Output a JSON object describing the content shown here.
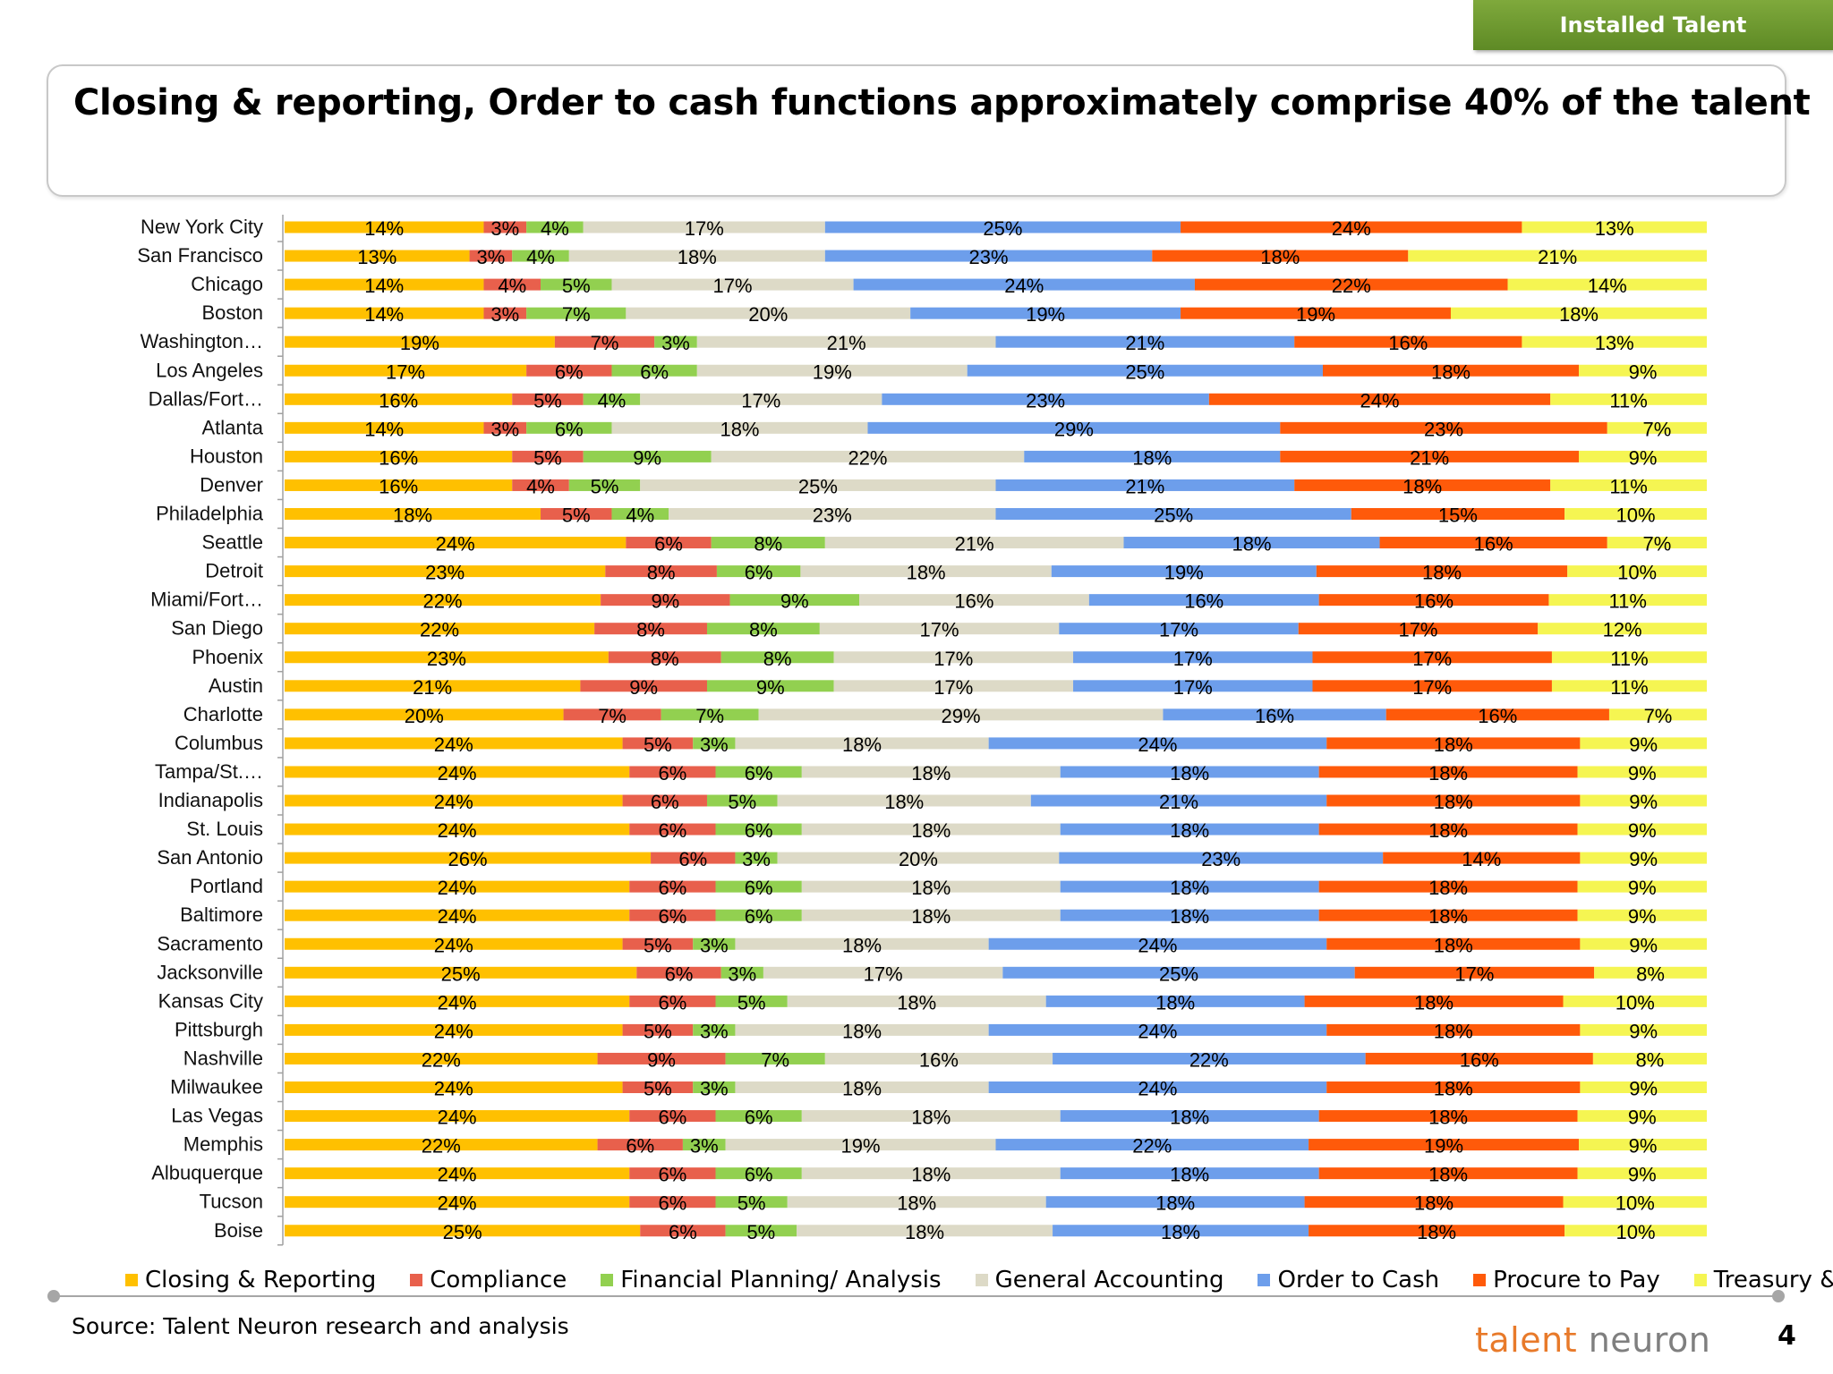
{
  "header": {
    "tag": "Installed Talent",
    "title": "Closing & reporting, Order to cash functions approximately comprise 40% of the talent"
  },
  "footer": {
    "source": "Source: Talent Neuron research and analysis",
    "logo_part1": "talent",
    "logo_part2": " neuron",
    "page_number": "4"
  },
  "chart_data": {
    "type": "bar",
    "orientation": "horizontal",
    "stacked": "100%",
    "categories": [
      "New York City",
      "San Francisco",
      "Chicago",
      "Boston",
      "Washington…",
      "Los Angeles",
      "Dallas/Fort…",
      "Atlanta",
      "Houston",
      "Denver",
      "Philadelphia",
      "Seattle",
      "Detroit",
      "Miami/Fort…",
      "San Diego",
      "Phoenix",
      "Austin",
      "Charlotte",
      "Columbus",
      "Tampa/St.…",
      "Indianapolis",
      "St. Louis",
      "San Antonio",
      "Portland",
      "Baltimore",
      "Sacramento",
      "Jacksonville",
      "Kansas City",
      "Pittsburgh",
      "Nashville",
      "Milwaukee",
      "Las Vegas",
      "Memphis",
      "Albuquerque",
      "Tucson",
      "Boise"
    ],
    "series": [
      {
        "name": "Closing & Reporting",
        "color": "#FFC000",
        "values": [
          14,
          13,
          14,
          14,
          19,
          17,
          16,
          14,
          16,
          16,
          18,
          24,
          23,
          22,
          22,
          23,
          21,
          20,
          24,
          24,
          24,
          24,
          26,
          24,
          24,
          24,
          25,
          24,
          24,
          22,
          24,
          24,
          22,
          24,
          24,
          25
        ]
      },
      {
        "name": "Compliance",
        "color": "#E8604C",
        "values": [
          3,
          3,
          4,
          3,
          7,
          6,
          5,
          3,
          5,
          4,
          5,
          6,
          8,
          9,
          8,
          8,
          9,
          7,
          5,
          6,
          6,
          6,
          6,
          6,
          6,
          5,
          6,
          6,
          5,
          9,
          5,
          6,
          6,
          6,
          6,
          6
        ]
      },
      {
        "name": "Financial Planning/ Analysis",
        "color": "#92D050",
        "values": [
          4,
          4,
          5,
          7,
          3,
          6,
          4,
          6,
          9,
          5,
          4,
          8,
          6,
          9,
          8,
          8,
          9,
          7,
          3,
          6,
          5,
          6,
          3,
          6,
          6,
          3,
          3,
          5,
          3,
          7,
          3,
          6,
          3,
          6,
          5,
          5
        ]
      },
      {
        "name": "General Accounting",
        "color": "#DDDAC7",
        "values": [
          17,
          18,
          17,
          20,
          21,
          19,
          17,
          18,
          22,
          25,
          23,
          21,
          18,
          16,
          17,
          17,
          17,
          29,
          18,
          18,
          18,
          18,
          20,
          18,
          18,
          18,
          17,
          18,
          18,
          16,
          18,
          18,
          19,
          18,
          18,
          18
        ]
      },
      {
        "name": "Order to Cash",
        "color": "#6D9EEB",
        "values": [
          25,
          23,
          24,
          19,
          21,
          25,
          23,
          29,
          18,
          21,
          25,
          18,
          19,
          16,
          17,
          17,
          17,
          16,
          24,
          18,
          21,
          18,
          23,
          18,
          18,
          24,
          25,
          18,
          24,
          22,
          24,
          18,
          22,
          18,
          18,
          18
        ]
      },
      {
        "name": "Procure to Pay",
        "color": "#FF5A0A",
        "values": [
          24,
          18,
          22,
          19,
          16,
          18,
          24,
          23,
          21,
          18,
          15,
          16,
          18,
          16,
          17,
          17,
          17,
          16,
          18,
          18,
          18,
          18,
          14,
          18,
          18,
          18,
          17,
          18,
          18,
          16,
          18,
          18,
          19,
          18,
          18,
          18
        ]
      },
      {
        "name": "Treasury & Tax",
        "color": "#F5F552",
        "values": [
          13,
          21,
          14,
          18,
          13,
          9,
          11,
          7,
          9,
          11,
          10,
          7,
          10,
          11,
          12,
          11,
          11,
          7,
          9,
          9,
          9,
          9,
          9,
          9,
          9,
          9,
          8,
          10,
          9,
          8,
          9,
          9,
          9,
          9,
          10,
          10
        ]
      }
    ],
    "value_suffix": "%",
    "legend_position": "bottom"
  }
}
